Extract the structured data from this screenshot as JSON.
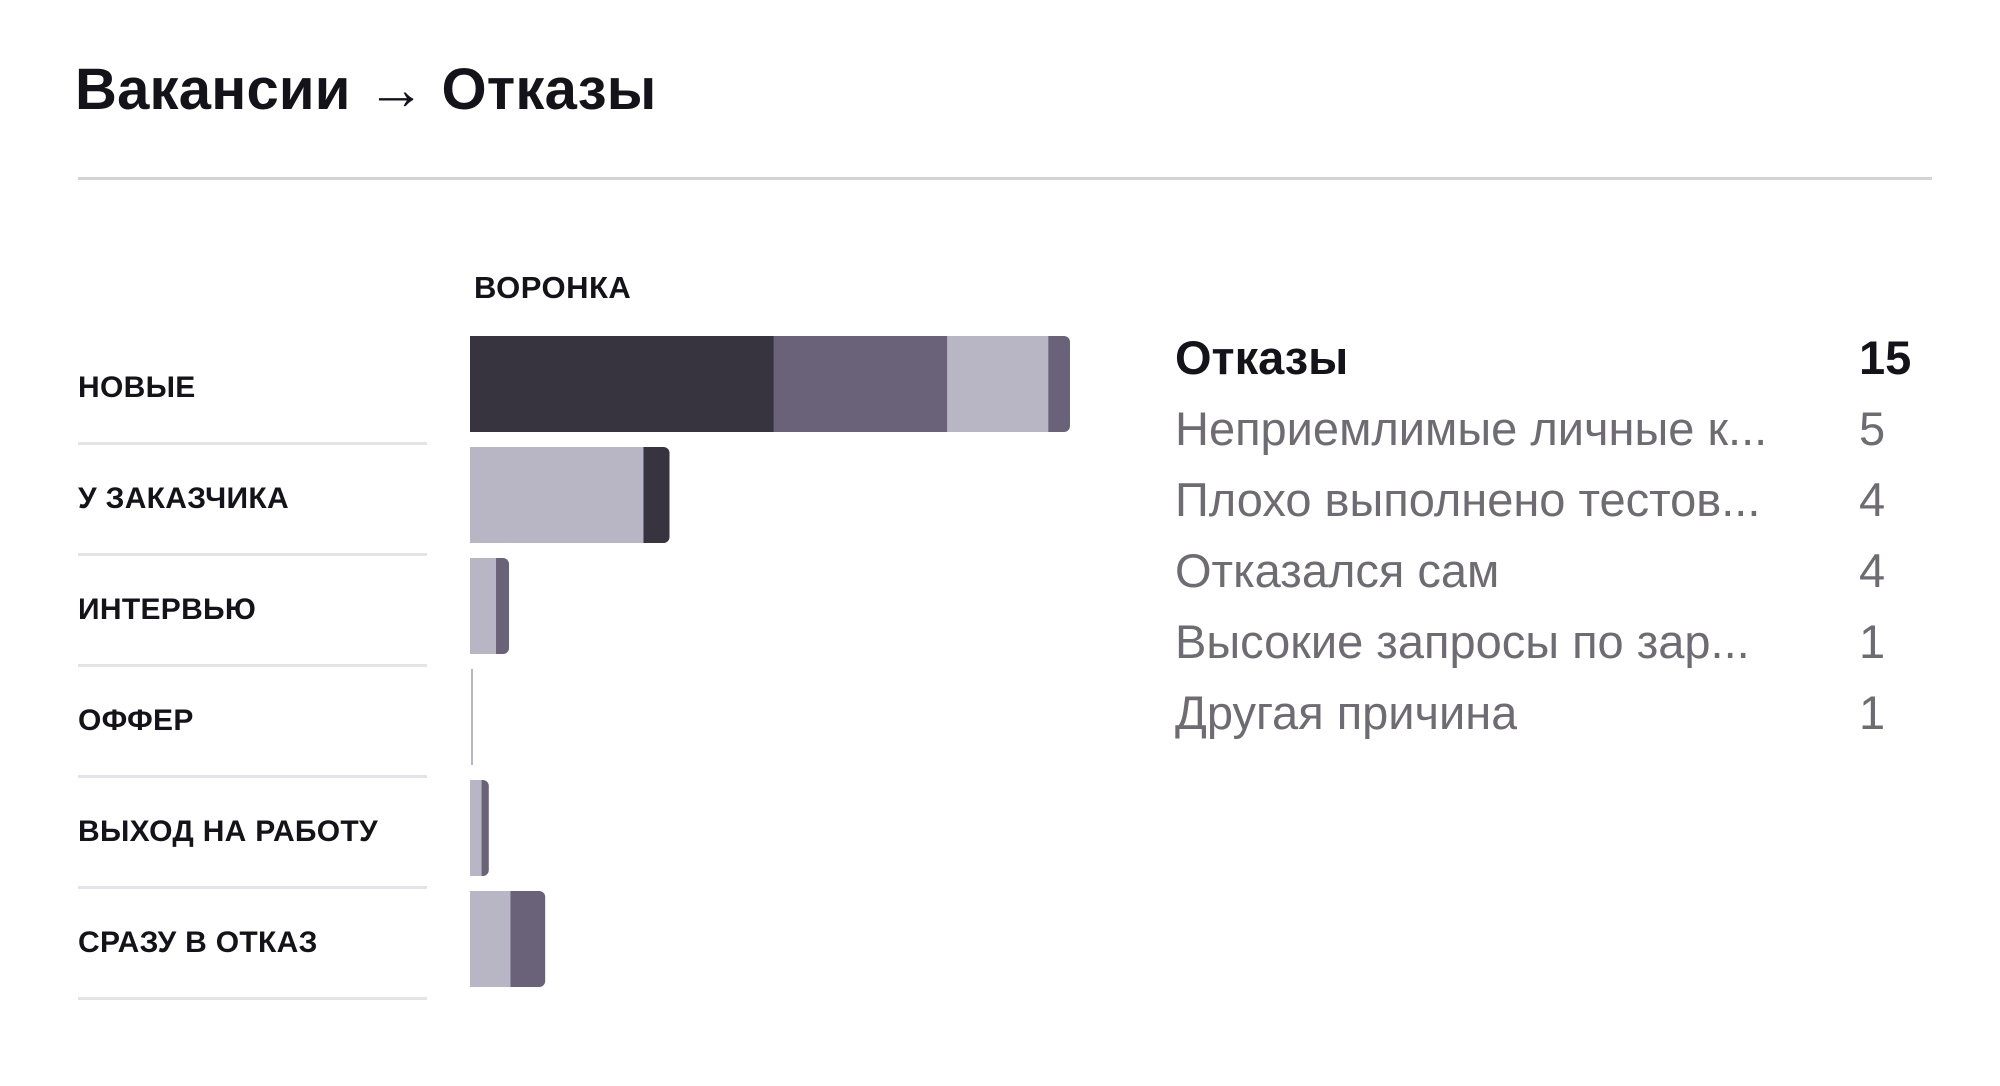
{
  "header": {
    "title": "Вакансии → Отказы"
  },
  "funnel": {
    "label": "ВОРОНКА"
  },
  "colors": {
    "dark": "#38343f",
    "medium": "#6a6279",
    "light": "#b8b5c4",
    "divider": "#d3d3d6"
  },
  "chart_data": {
    "type": "bar",
    "orientation": "horizontal",
    "stacked": true,
    "title": "ВОРОНКА",
    "categories": [
      "НОВЫЕ",
      "У ЗАКАЗЧИКА",
      "ИНТЕРВЬЮ",
      "ОФФЕР",
      "ВЫХОД НА РАБОТУ",
      "СРАЗУ В ОТКАЗ"
    ],
    "segments": [
      [
        {
          "value": 21,
          "color": "#38343f"
        },
        {
          "value": 12,
          "color": "#6a6279"
        },
        {
          "value": 7,
          "color": "#b8b5c4"
        },
        {
          "value": 1.5,
          "color": "#6a6279"
        }
      ],
      [
        {
          "value": 12,
          "color": "#b8b5c4"
        },
        {
          "value": 1.8,
          "color": "#38343f"
        }
      ],
      [
        {
          "value": 1.8,
          "color": "#b8b5c4"
        },
        {
          "value": 0.9,
          "color": "#6a6279"
        }
      ],
      [],
      [
        {
          "value": 0.8,
          "color": "#b8b5c4"
        },
        {
          "value": 0.5,
          "color": "#6a6279"
        }
      ],
      [
        {
          "value": 2.8,
          "color": "#b8b5c4"
        },
        {
          "value": 2.4,
          "color": "#6a6279"
        }
      ]
    ],
    "xlim": [
      0,
      41.5
    ],
    "grid": false,
    "legend": "none"
  },
  "reasons": {
    "total": {
      "label": "Отказы",
      "value": "15"
    },
    "items": [
      {
        "label": "Неприемлимые личные к...",
        "value": "5"
      },
      {
        "label": "Плохо выполнено тестов...",
        "value": "4"
      },
      {
        "label": "Отказался сам",
        "value": "4"
      },
      {
        "label": "Высокие запросы по зар...",
        "value": "1"
      },
      {
        "label": "Другая причина",
        "value": "1"
      }
    ]
  }
}
